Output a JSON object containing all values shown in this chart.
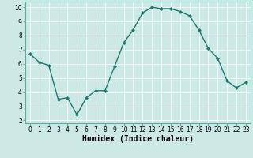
{
  "x": [
    0,
    1,
    2,
    3,
    4,
    5,
    6,
    7,
    8,
    9,
    10,
    11,
    12,
    13,
    14,
    15,
    16,
    17,
    18,
    19,
    20,
    21,
    22,
    23
  ],
  "y": [
    6.7,
    6.1,
    5.9,
    3.5,
    3.6,
    2.4,
    3.6,
    4.1,
    4.1,
    5.8,
    7.5,
    8.4,
    9.6,
    10.0,
    9.9,
    9.9,
    9.7,
    9.4,
    8.4,
    7.1,
    6.4,
    4.8,
    4.3,
    4.7
  ],
  "line_color": "#1a7a6e",
  "marker": "D",
  "marker_size": 2.2,
  "line_width": 1.0,
  "background_color": "#cce9e6",
  "grid_color": "#ffffff",
  "xlabel": "Humidex (Indice chaleur)",
  "xlabel_fontsize": 7,
  "xlim": [
    -0.5,
    23.5
  ],
  "ylim": [
    1.8,
    10.4
  ],
  "yticks": [
    2,
    3,
    4,
    5,
    6,
    7,
    8,
    9,
    10
  ],
  "xticks": [
    0,
    1,
    2,
    3,
    4,
    5,
    6,
    7,
    8,
    9,
    10,
    11,
    12,
    13,
    14,
    15,
    16,
    17,
    18,
    19,
    20,
    21,
    22,
    23
  ],
  "tick_fontsize": 5.5,
  "grid_linewidth": 0.5,
  "spine_color": "#5aada0"
}
